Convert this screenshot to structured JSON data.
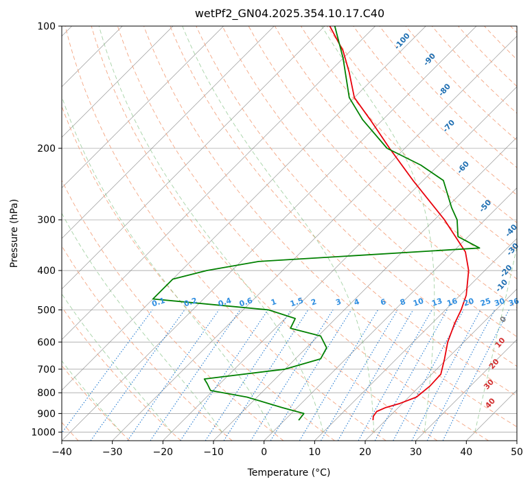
{
  "chart_data": {
    "type": "skew-t",
    "title": "wetPf2_GN04.2025.354.10.17.C40",
    "xlabel": "Temperature (°C)",
    "ylabel": "Pressure (hPa)",
    "xlim": [
      -40,
      50
    ],
    "ylim": [
      1050,
      100
    ],
    "y_scale": "log",
    "grid": true,
    "x_ticks": [
      "−40",
      "−30",
      "−20",
      "−10",
      "0",
      "10",
      "20",
      "30",
      "40",
      "50"
    ],
    "y_ticks": [
      {
        "p": 100,
        "label": "100"
      },
      {
        "p": 200,
        "label": "200"
      },
      {
        "p": 300,
        "label": "300"
      },
      {
        "p": 400,
        "label": "400"
      },
      {
        "p": 500,
        "label": "500"
      },
      {
        "p": 600,
        "label": "600"
      },
      {
        "p": 700,
        "label": "700"
      },
      {
        "p": 800,
        "label": "800"
      },
      {
        "p": 900,
        "label": "900"
      },
      {
        "p": 1000,
        "label": "1000"
      }
    ],
    "series": [
      {
        "key": "temperature",
        "color": "#e8000b",
        "points": [
          [
            17.5,
            935
          ],
          [
            16.8,
            915
          ],
          [
            16.5,
            890
          ],
          [
            17.5,
            870
          ],
          [
            19.5,
            850
          ],
          [
            21.5,
            820
          ],
          [
            22.0,
            770
          ],
          [
            21.8,
            720
          ],
          [
            19.5,
            660
          ],
          [
            16.8,
            600
          ],
          [
            14.5,
            540
          ],
          [
            13.1,
            500
          ],
          [
            11.2,
            460
          ],
          [
            6.8,
            400
          ],
          [
            2.5,
            360
          ],
          [
            -8.0,
            300
          ],
          [
            -22.0,
            240
          ],
          [
            -33.0,
            200
          ],
          [
            -42.5,
            170
          ],
          [
            -50.0,
            150
          ],
          [
            -56.0,
            130
          ],
          [
            -61.5,
            115
          ],
          [
            -69.0,
            100
          ]
        ]
      },
      {
        "key": "dewpoint",
        "color": "#008000",
        "points": [
          [
            2.8,
            935
          ],
          [
            2.5,
            900
          ],
          [
            -3.0,
            870
          ],
          [
            -12.0,
            820
          ],
          [
            -20.5,
            790
          ],
          [
            -22.5,
            760
          ],
          [
            -24.0,
            740
          ],
          [
            -10.0,
            700
          ],
          [
            -5.0,
            660
          ],
          [
            -6.0,
            620
          ],
          [
            -9.5,
            580
          ],
          [
            -17.0,
            555
          ],
          [
            -18.0,
            525
          ],
          [
            -25.0,
            500
          ],
          [
            -50.0,
            470
          ],
          [
            -50.0,
            420
          ],
          [
            -45.0,
            400
          ],
          [
            -36.5,
            380
          ],
          [
            4.5,
            352
          ],
          [
            -2.0,
            330
          ],
          [
            -5.5,
            300
          ],
          [
            -9.0,
            280
          ],
          [
            -16.0,
            240
          ],
          [
            -23.5,
            220
          ],
          [
            -33.5,
            200
          ],
          [
            -44.0,
            170
          ],
          [
            -51.0,
            150
          ],
          [
            -60.0,
            120
          ],
          [
            -68.0,
            100
          ]
        ]
      }
    ],
    "dry_adiabat_labels": [
      "-100",
      "-90",
      "-80",
      "-70",
      "-60",
      "-50",
      "-40",
      "-30",
      "-20",
      "-10",
      "0",
      "10",
      "20",
      "30",
      "40"
    ],
    "mixing_ratio_labels": [
      "0.1",
      "0.2",
      "0.4",
      "0.6",
      "1",
      "1.5",
      "2",
      "3",
      "4",
      "6",
      "8",
      "10",
      "13",
      "16",
      "20",
      "25",
      "30",
      "36"
    ],
    "colors": {
      "isotherm": "#777777",
      "dry_adiabat": "#f4a582",
      "moist_adiabat": "#7fbf7f",
      "mixing_ratio": "#1f78d0",
      "label_cold": "#1f6fb2",
      "label_zero": "#7a7a7a",
      "label_warm": "#d32f2f",
      "mixing_label": "#2f8ee0"
    }
  }
}
